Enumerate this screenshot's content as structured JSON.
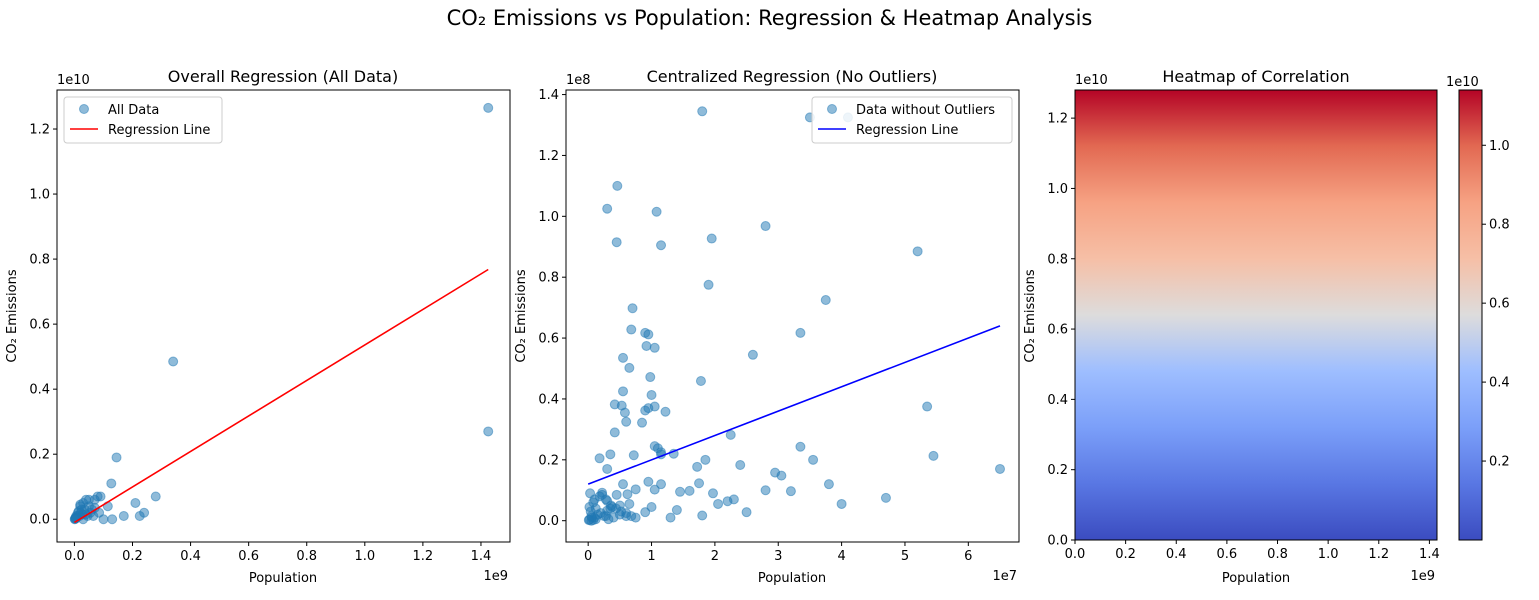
{
  "figure": {
    "suptitle": "CO₂ Emissions vs Population: Regression & Heatmap Analysis"
  },
  "colors": {
    "points": "#1f77b4",
    "regression_all": "#ff0000",
    "regression_central": "#0000ff",
    "colormap": "coolwarm"
  },
  "chart_data": [
    {
      "type": "scatter",
      "title": "Overall Regression (All Data)",
      "xlabel": "Population",
      "ylabel": "CO₂ Emissions",
      "xlim": [
        -0.06,
        1.5
      ],
      "ylim": [
        -0.07,
        1.32
      ],
      "x_ticks": [
        0.0,
        0.2,
        0.4,
        0.6,
        0.8,
        1.0,
        1.2,
        1.4
      ],
      "x_tick_labels": [
        "0.0",
        "0.2",
        "0.4",
        "0.6",
        "0.8",
        "1.0",
        "1.2",
        "1.4"
      ],
      "y_ticks": [
        0.0,
        0.2,
        0.4,
        0.6,
        0.8,
        1.0,
        1.2
      ],
      "y_tick_labels": [
        "0.0",
        "0.2",
        "0.4",
        "0.6",
        "0.8",
        "1.0",
        "1.2"
      ],
      "x_offset_text": "1e9",
      "y_offset_text": "1e10",
      "legend_position": "upper-left",
      "series": [
        {
          "name": "All Data",
          "kind": "scatter",
          "x": [
            1.425,
            1.425,
            0.34,
            0.145,
            0.127,
            0.28,
            0.21,
            0.24,
            0.225,
            0.17,
            0.13,
            0.1,
            0.115,
            0.09,
            0.08,
            0.085,
            0.07,
            0.065,
            0.06,
            0.055,
            0.05,
            0.045,
            0.04,
            0.035,
            0.03,
            0.028,
            0.025,
            0.022,
            0.02,
            0.018,
            0.015,
            0.012,
            0.01,
            0.008,
            0.006,
            0.005,
            0.004,
            0.003,
            0.002,
            0.001,
            0.05,
            0.03,
            0.07,
            0.02,
            0.04
          ],
          "y": [
            1.265,
            0.27,
            0.485,
            0.19,
            0.11,
            0.07,
            0.05,
            0.02,
            0.01,
            0.01,
            0.0,
            0.0,
            0.04,
            0.07,
            0.07,
            0.02,
            0.06,
            0.01,
            0.03,
            0.02,
            0.04,
            0.01,
            0.06,
            0.03,
            0.05,
            0.015,
            0.03,
            0.02,
            0.04,
            0.01,
            0.025,
            0.02,
            0.01,
            0.005,
            0.01,
            0.003,
            0.005,
            0.002,
            0.001,
            0.0,
            0.06,
            0.0,
            0.035,
            0.045,
            0.015
          ]
        },
        {
          "name": "Regression Line",
          "kind": "line",
          "x": [
            0.0,
            1.425
          ],
          "y": [
            -0.01,
            0.768
          ]
        }
      ]
    },
    {
      "type": "scatter",
      "title": "Centralized Regression (No Outliers)",
      "xlabel": "Population",
      "ylabel": "CO₂ Emissions",
      "xlim": [
        -0.35,
        6.8
      ],
      "ylim": [
        -0.07,
        1.415
      ],
      "x_ticks": [
        0,
        1,
        2,
        3,
        4,
        5,
        6
      ],
      "x_tick_labels": [
        "0",
        "1",
        "2",
        "3",
        "4",
        "5",
        "6"
      ],
      "y_ticks": [
        0.0,
        0.2,
        0.4,
        0.6,
        0.8,
        1.0,
        1.2,
        1.4
      ],
      "y_tick_labels": [
        "0.0",
        "0.2",
        "0.4",
        "0.6",
        "0.8",
        "1.0",
        "1.2",
        "1.4"
      ],
      "x_offset_text": "1e7",
      "y_offset_text": "1e8",
      "legend_position": "upper-right",
      "series": [
        {
          "name": "Data without Outliers",
          "kind": "scatter",
          "x": [
            1.8,
            3.5,
            4.1,
            0.46,
            0.3,
            1.08,
            0.45,
            1.15,
            1.95,
            2.8,
            5.2,
            1.9,
            0.7,
            3.75,
            0.68,
            0.9,
            0.95,
            3.35,
            0.92,
            1.05,
            2.6,
            0.55,
            0.65,
            1.78,
            0.98,
            1.0,
            1.22,
            1.05,
            0.9,
            0.53,
            0.58,
            0.95,
            5.35,
            0.55,
            0.6,
            0.85,
            0.42,
            0.42,
            1.05,
            2.25,
            0.35,
            1.1,
            1.15,
            1.35,
            1.15,
            5.45,
            6.5,
            1.85,
            3.55,
            2.95,
            1.72,
            3.35,
            0.72,
            0.18,
            0.3,
            2.4,
            0.55,
            0.95,
            1.6,
            0.75,
            1.15,
            1.75,
            0.22,
            1.05,
            0.62,
            0.22,
            3.8,
            3.2,
            2.8,
            1.97,
            0.45,
            2.3,
            2.2,
            4.0,
            0.3,
            0.5,
            0.38,
            4.7,
            0.65,
            1.45,
            1.4,
            0.35,
            3.05,
            2.05,
            1.0,
            0.9,
            1.8,
            0.6,
            0.3,
            2.5,
            1.3,
            0.28,
            0.1,
            0.12,
            0.15,
            0.05,
            0.08,
            0.02,
            0.06,
            0.2,
            0.25,
            0.4,
            0.5,
            0.32,
            0.12,
            0.04,
            0.08,
            0.18,
            0.28,
            0.36,
            0.44,
            0.52,
            0.6,
            0.68,
            0.75,
            0.1,
            0.02,
            0.03,
            0.05,
            0.01
          ],
          "y": [
            1.345,
            1.325,
            1.325,
            1.1,
            1.025,
            1.015,
            0.915,
            0.905,
            0.927,
            0.968,
            0.885,
            0.775,
            0.698,
            0.725,
            0.628,
            0.617,
            0.612,
            0.617,
            0.574,
            0.568,
            0.545,
            0.535,
            0.502,
            0.459,
            0.472,
            0.413,
            0.358,
            0.375,
            0.362,
            0.378,
            0.355,
            0.37,
            0.375,
            0.425,
            0.325,
            0.322,
            0.382,
            0.29,
            0.245,
            0.282,
            0.218,
            0.238,
            0.225,
            0.22,
            0.218,
            0.213,
            0.17,
            0.2,
            0.2,
            0.158,
            0.177,
            0.243,
            0.215,
            0.205,
            0.17,
            0.183,
            0.12,
            0.128,
            0.098,
            0.103,
            0.12,
            0.123,
            0.092,
            0.102,
            0.087,
            0.085,
            0.12,
            0.097,
            0.1,
            0.09,
            0.085,
            0.07,
            0.064,
            0.055,
            0.065,
            0.05,
            0.045,
            0.075,
            0.055,
            0.095,
            0.035,
            0.04,
            0.148,
            0.055,
            0.045,
            0.028,
            0.017,
            0.015,
            0.033,
            0.028,
            0.01,
            0.015,
            0.01,
            0.005,
            0.02,
            0.0,
            0.002,
            0.003,
            0.01,
            0.025,
            0.015,
            0.01,
            0.02,
            0.005,
            0.04,
            0.03,
            0.06,
            0.08,
            0.07,
            0.05,
            0.04,
            0.03,
            0.025,
            0.015,
            0.01,
            0.07,
            0.045,
            0.09,
            0.015,
            0.002
          ],
          "y_note": "values in units of 1e8"
        },
        {
          "name": "Regression Line",
          "kind": "line",
          "x": [
            0.0,
            6.5
          ],
          "y": [
            0.12,
            0.64
          ]
        }
      ]
    },
    {
      "type": "heatmap",
      "title": "Heatmap of Correlation",
      "xlabel": "Population",
      "ylabel": "CO₂ Emissions",
      "xlim": [
        0.0,
        1.43
      ],
      "ylim": [
        0.0,
        1.28
      ],
      "x_ticks": [
        0.0,
        0.2,
        0.4,
        0.6,
        0.8,
        1.0,
        1.2,
        1.4
      ],
      "x_tick_labels": [
        "0.0",
        "0.2",
        "0.4",
        "0.6",
        "0.8",
        "1.0",
        "1.2",
        "1.4"
      ],
      "y_ticks": [
        0.0,
        0.2,
        0.4,
        0.6,
        0.8,
        1.0,
        1.2
      ],
      "y_tick_labels": [
        "0.0",
        "0.2",
        "0.4",
        "0.6",
        "0.8",
        "1.0",
        "1.2"
      ],
      "x_offset_text": "1e9",
      "y_offset_text": "1e10",
      "colorbar": {
        "min": 0.0,
        "max": 1.14,
        "ticks": [
          0.2,
          0.4,
          0.6,
          0.8,
          1.0
        ],
        "tick_labels": [
          "0.2",
          "0.4",
          "0.6",
          "0.8",
          "1.0"
        ],
        "offset_text": "1e10"
      }
    }
  ]
}
